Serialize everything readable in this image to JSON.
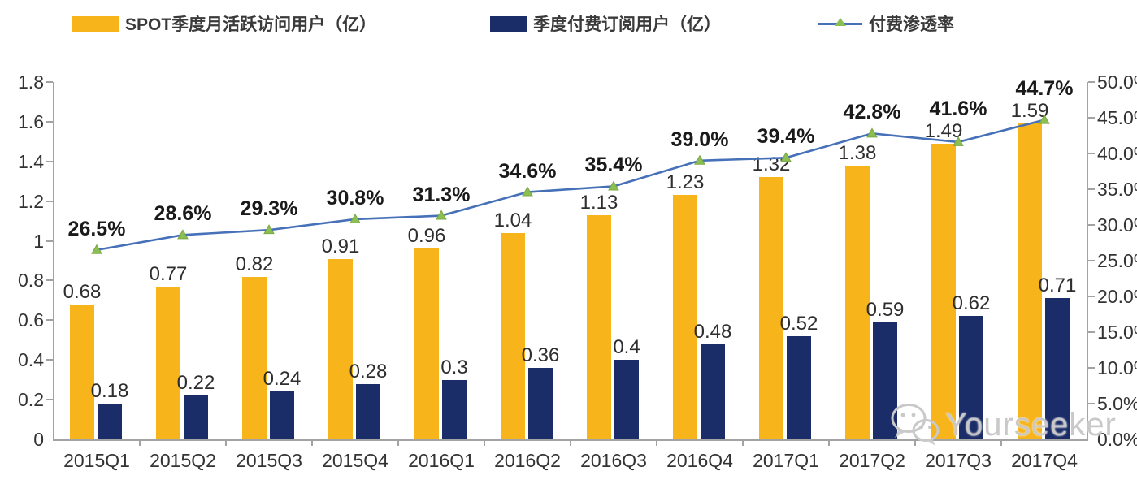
{
  "legend": {
    "items": [
      {
        "label": "SPOT季度月活跃访问用户（亿）"
      },
      {
        "label": "季度付费订阅用户（亿）"
      },
      {
        "label": "付费渗透率"
      }
    ]
  },
  "watermark": {
    "text": "Yourseeker",
    "icon": "wechat-icon"
  },
  "chart_data": {
    "type": "bar+line combo",
    "title": "",
    "legend_position": "top",
    "grid": false,
    "background": "#ffffff",
    "axis_color": "#a3a3a3",
    "label_color": "#333333",
    "categories": [
      "2015Q1",
      "2015Q2",
      "2015Q3",
      "2015Q4",
      "2016Q1",
      "2016Q2",
      "2016Q3",
      "2016Q4",
      "2017Q1",
      "2017Q2",
      "2017Q3",
      "2017Q4"
    ],
    "series": [
      {
        "name": "SPOT季度月活跃访问用户（亿）",
        "type": "bar",
        "axis": "left",
        "color": "#F7B41B",
        "values": [
          0.68,
          0.77,
          0.82,
          0.91,
          0.96,
          1.04,
          1.13,
          1.23,
          1.32,
          1.38,
          1.49,
          1.59
        ],
        "labels": [
          "0.68",
          "0.77",
          "0.82",
          "0.91",
          "0.96",
          "1.04",
          "1.13",
          "1.23",
          "1.32",
          "1.38",
          "1.49",
          "1.59"
        ]
      },
      {
        "name": "季度付费订阅用户（亿）",
        "type": "bar",
        "axis": "left",
        "color": "#1B2D69",
        "values": [
          0.18,
          0.22,
          0.24,
          0.28,
          0.3,
          0.36,
          0.4,
          0.48,
          0.52,
          0.59,
          0.62,
          0.71
        ],
        "labels": [
          "0.18",
          "0.22",
          "0.24",
          "0.28",
          "0.3",
          "0.36",
          "0.4",
          "0.48",
          "0.52",
          "0.59",
          "0.62",
          "0.71"
        ]
      },
      {
        "name": "付费渗透率",
        "type": "line",
        "axis": "right",
        "color": "#4671B8",
        "marker": "triangle",
        "marker_color": "#8CBF52",
        "values_pct": [
          26.5,
          28.6,
          29.3,
          30.8,
          31.3,
          34.6,
          35.4,
          39.0,
          39.4,
          42.8,
          41.6,
          44.7
        ],
        "labels": [
          "26.5%",
          "28.6%",
          "29.3%",
          "30.8%",
          "31.3%",
          "34.6%",
          "35.4%",
          "39.0%",
          "39.4%",
          "42.8%",
          "41.6%",
          "44.7%"
        ]
      }
    ],
    "left_axis": {
      "min": 0,
      "max": 1.8,
      "step": 0.2,
      "tick_labels": [
        "0",
        "0.2",
        "0.4",
        "0.6",
        "0.8",
        "1",
        "1.2",
        "1.4",
        "1.6",
        "1.8"
      ]
    },
    "right_axis": {
      "min": 0,
      "max": 50,
      "step": 5,
      "tick_labels": [
        "0.0%",
        "5.0%",
        "10.0%",
        "15.0%",
        "20.0%",
        "25.0%",
        "30.0%",
        "35.0%",
        "40.0%",
        "45.0%",
        "50.0%"
      ]
    }
  }
}
